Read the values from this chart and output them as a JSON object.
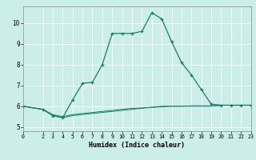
{
  "xlabel": "Humidex (Indice chaleur)",
  "bg_color": "#cceee8",
  "line_color": "#1a7a6e",
  "grid_color": "#ffffff",
  "xlim": [
    0,
    23
  ],
  "ylim": [
    4.8,
    10.8
  ],
  "yticks": [
    5,
    6,
    7,
    8,
    9,
    10
  ],
  "xticks": [
    0,
    2,
    3,
    4,
    5,
    6,
    7,
    8,
    9,
    10,
    11,
    12,
    13,
    14,
    15,
    16,
    17,
    18,
    19,
    20,
    21,
    22,
    23
  ],
  "curve1_x": [
    0,
    2,
    3,
    4,
    5,
    6,
    7,
    8,
    9,
    10,
    11,
    12,
    13,
    14,
    15,
    16,
    17,
    18,
    19,
    20,
    21,
    22,
    23
  ],
  "curve1_y": [
    6.0,
    5.85,
    5.55,
    5.45,
    6.3,
    7.1,
    7.15,
    8.0,
    9.5,
    9.5,
    9.5,
    9.6,
    10.5,
    10.2,
    9.1,
    8.1,
    7.5,
    6.8,
    6.1,
    6.05,
    6.05,
    6.05,
    6.05
  ],
  "curve2_x": [
    0,
    2,
    3,
    4,
    5,
    6,
    7,
    8,
    9,
    10,
    11,
    12,
    13,
    14,
    15,
    16,
    17,
    18,
    19,
    20,
    21,
    22,
    23
  ],
  "curve2_y": [
    6.0,
    5.85,
    5.55,
    5.45,
    5.55,
    5.6,
    5.65,
    5.7,
    5.75,
    5.8,
    5.85,
    5.9,
    5.95,
    6.0,
    6.0,
    6.0,
    6.0,
    6.0,
    6.0,
    6.05,
    6.05,
    6.05,
    6.05
  ],
  "curve3_x": [
    0,
    2,
    3,
    4,
    5,
    6,
    7,
    8,
    9,
    10,
    11,
    12,
    13,
    14,
    15,
    16,
    17,
    18,
    19,
    20,
    21,
    22,
    23
  ],
  "curve3_y": [
    6.0,
    5.85,
    5.6,
    5.5,
    5.6,
    5.65,
    5.7,
    5.75,
    5.8,
    5.85,
    5.9,
    5.92,
    5.95,
    5.97,
    6.0,
    6.0,
    6.02,
    6.02,
    6.02,
    6.05,
    6.05,
    6.05,
    6.05
  ]
}
